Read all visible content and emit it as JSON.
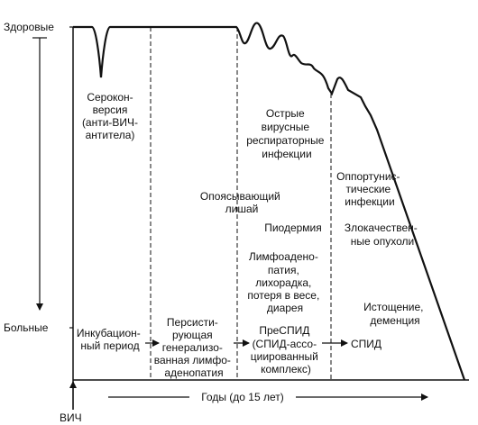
{
  "y_axis": {
    "top_label": "Здоровые",
    "bottom_label": "Больные"
  },
  "x_axis": {
    "origin_label": "ВИЧ",
    "time_label": "Годы (до 15 лет)"
  },
  "labels": {
    "seroconversion": [
      "Сероконверсия",
      "версия",
      "(анти-ВИЧ-",
      "антитела)"
    ],
    "acute_infections": [
      "Острые",
      "вирусные",
      "респираторные",
      "инфекции"
    ],
    "zoster": [
      "Опоясывающий",
      "лишай"
    ],
    "opportunistic": [
      "Оппортунис-",
      "тические",
      "инфекции"
    ],
    "candidiasis": "Пиодермия",
    "tumors": [
      "Злокачествен-",
      "ные опухоли"
    ],
    "lymphadenopathy": [
      "Лимфоадено-",
      "патия,",
      "лихорадка,",
      "потеря в весе,",
      "диарея"
    ],
    "wasting": [
      "Истощение,",
      "деменция"
    ]
  },
  "stages": [
    {
      "lines": [
        "Инкубацион-",
        "ный период"
      ]
    },
    {
      "lines": [
        "Персисти-",
        "рующая",
        "генерализо-",
        "ванная лимфо-",
        "аденопатия"
      ]
    },
    {
      "lines": [
        "ПреСПИД",
        "(СПИД-ассо-",
        "циированный",
        "комплекс)"
      ]
    },
    {
      "lines": [
        "СПИД"
      ]
    }
  ]
}
